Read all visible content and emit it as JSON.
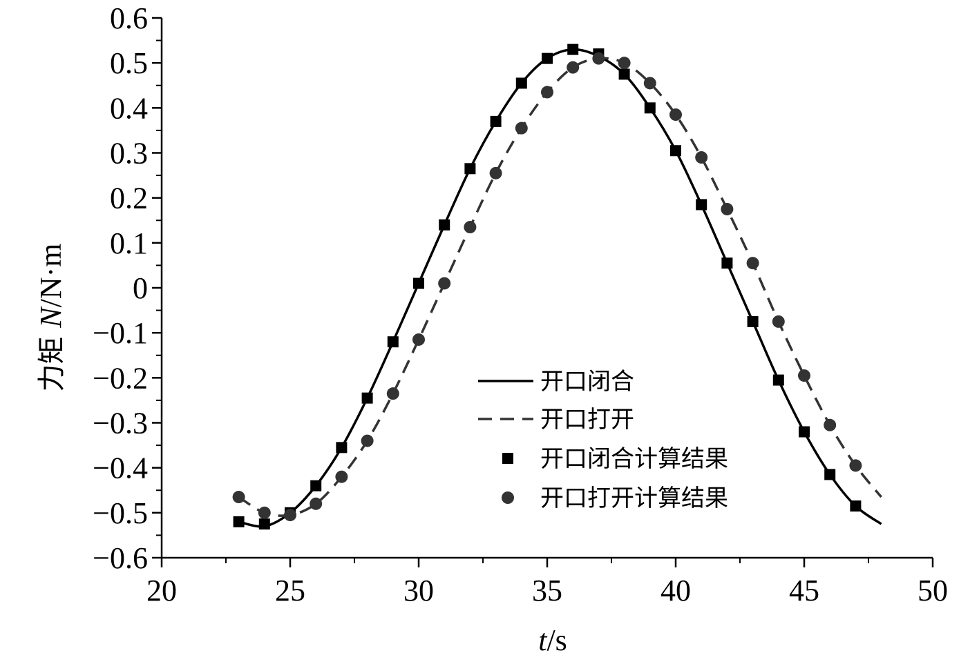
{
  "chart_data": {
    "type": "line",
    "xlabel_italic": "t",
    "xlabel_unit": "/s",
    "ylabel_text": "力矩 ",
    "ylabel_italic": "N",
    "ylabel_unit": "/N·m",
    "xlim": [
      20,
      50
    ],
    "ylim": [
      -0.6,
      0.6
    ],
    "xticks": [
      20,
      25,
      30,
      35,
      40,
      45,
      50
    ],
    "xtick_labels": [
      "20",
      "25",
      "30",
      "35",
      "40",
      "45",
      "50"
    ],
    "yticks": [
      0.6,
      0.5,
      0.4,
      0.3,
      0.2,
      0.1,
      0,
      -0.1,
      -0.2,
      -0.3,
      -0.4,
      -0.5,
      -0.6
    ],
    "ytick_labels": [
      "0.6",
      "0.5",
      "0.4",
      "0.3",
      "0.2",
      "0.1",
      "0",
      "−0.1",
      "−0.2",
      "−0.3",
      "−0.4",
      "−0.5",
      "−0.6"
    ],
    "grid": false,
    "legend_position": "center-right",
    "series": [
      {
        "name": "开口闭合",
        "style": "solid-line",
        "color": "#000000",
        "x": [
          23,
          24,
          25,
          26,
          27,
          28,
          29,
          30,
          31,
          32,
          33,
          34,
          35,
          36,
          37,
          38,
          39,
          40,
          41,
          42,
          43,
          44,
          45,
          46,
          47,
          48
        ],
        "y": [
          -0.52,
          -0.53,
          -0.5,
          -0.44,
          -0.355,
          -0.245,
          -0.12,
          0.01,
          0.14,
          0.265,
          0.37,
          0.455,
          0.51,
          0.53,
          0.515,
          0.475,
          0.4,
          0.305,
          0.185,
          0.055,
          -0.075,
          -0.205,
          -0.32,
          -0.415,
          -0.485,
          -0.525
        ]
      },
      {
        "name": "开口打开",
        "style": "dashed-line",
        "color": "#333333",
        "x": [
          23,
          24,
          25,
          26,
          27,
          28,
          29,
          30,
          31,
          32,
          33,
          34,
          35,
          36,
          37,
          38,
          39,
          40,
          41,
          42,
          43,
          44,
          45,
          46,
          47,
          48
        ],
        "y": [
          -0.465,
          -0.5,
          -0.505,
          -0.48,
          -0.42,
          -0.34,
          -0.235,
          -0.115,
          0.01,
          0.135,
          0.255,
          0.355,
          0.435,
          0.49,
          0.51,
          0.5,
          0.455,
          0.385,
          0.29,
          0.175,
          0.055,
          -0.075,
          -0.195,
          -0.305,
          -0.395,
          -0.465
        ]
      },
      {
        "name": "开口闭合计算结果",
        "style": "square-markers",
        "color": "#000000",
        "x": [
          23,
          24,
          25,
          26,
          27,
          28,
          29,
          30,
          31,
          32,
          33,
          34,
          35,
          36,
          37,
          38,
          39,
          40,
          41,
          42,
          43,
          44,
          45,
          46,
          47
        ],
        "y": [
          -0.52,
          -0.525,
          -0.5,
          -0.44,
          -0.355,
          -0.245,
          -0.12,
          0.01,
          0.14,
          0.265,
          0.37,
          0.455,
          0.51,
          0.53,
          0.52,
          0.475,
          0.4,
          0.305,
          0.185,
          0.055,
          -0.075,
          -0.205,
          -0.32,
          -0.415,
          -0.485
        ]
      },
      {
        "name": "开口打开计算结果",
        "style": "circle-markers",
        "color": "#333333",
        "x": [
          23,
          24,
          25,
          26,
          27,
          28,
          29,
          30,
          31,
          32,
          33,
          34,
          35,
          36,
          37,
          38,
          39,
          40,
          41,
          42,
          43,
          44,
          45,
          46,
          47
        ],
        "y": [
          -0.465,
          -0.5,
          -0.505,
          -0.48,
          -0.42,
          -0.34,
          -0.235,
          -0.115,
          0.01,
          0.135,
          0.255,
          0.355,
          0.435,
          0.49,
          0.51,
          0.5,
          0.455,
          0.385,
          0.29,
          0.175,
          0.055,
          -0.075,
          -0.195,
          -0.305,
          -0.395
        ]
      }
    ]
  }
}
